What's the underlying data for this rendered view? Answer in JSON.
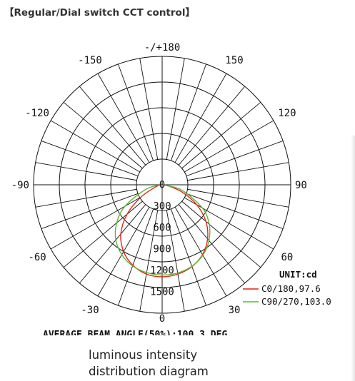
{
  "heading": "【Regular/Dial switch CCT control】",
  "caption": [
    "luminous intensity",
    "distribution diagram"
  ],
  "chart_data": {
    "type": "polar",
    "angle_labels": [
      {
        "angle": 180,
        "text": "-/+180"
      },
      {
        "angle": 150,
        "text": "150"
      },
      {
        "angle": -150,
        "text": "-150"
      },
      {
        "angle": 120,
        "text": "120"
      },
      {
        "angle": -120,
        "text": "-120"
      },
      {
        "angle": 90,
        "text": "90"
      },
      {
        "angle": -90,
        "text": "-90"
      },
      {
        "angle": 60,
        "text": "60"
      },
      {
        "angle": -60,
        "text": "-60"
      },
      {
        "angle": 30,
        "text": "30"
      },
      {
        "angle": -30,
        "text": "-30"
      },
      {
        "angle": 0,
        "text": "0"
      }
    ],
    "radial_ticks": [
      0,
      300,
      600,
      900,
      1200,
      1500
    ],
    "radial_max": 1800,
    "unit_label": "UNIT:cd",
    "beam_angle_text": "AVERAGE BEAM ANGLE(50%):100.3 DEG",
    "series": [
      {
        "name": "C0/180,97.6",
        "color": "#e2231a",
        "beam_angle": 97.6,
        "points": [
          {
            "angle": -90,
            "value": 0
          },
          {
            "angle": -75,
            "value": 75
          },
          {
            "angle": -60,
            "value": 340
          },
          {
            "angle": -50,
            "value": 640
          },
          {
            "angle": -40,
            "value": 900
          },
          {
            "angle": -30,
            "value": 1080
          },
          {
            "angle": -20,
            "value": 1200
          },
          {
            "angle": -10,
            "value": 1270
          },
          {
            "angle": 0,
            "value": 1290
          },
          {
            "angle": 10,
            "value": 1270
          },
          {
            "angle": 20,
            "value": 1220
          },
          {
            "angle": 30,
            "value": 1130
          },
          {
            "angle": 40,
            "value": 990
          },
          {
            "angle": 50,
            "value": 800
          },
          {
            "angle": 60,
            "value": 560
          },
          {
            "angle": 70,
            "value": 300
          },
          {
            "angle": 80,
            "value": 90
          },
          {
            "angle": 90,
            "value": 0
          }
        ]
      },
      {
        "name": "C90/270,103.0",
        "color": "#5cb832",
        "beam_angle": 103.0,
        "points": [
          {
            "angle": -90,
            "value": 0
          },
          {
            "angle": -75,
            "value": 230
          },
          {
            "angle": -60,
            "value": 600
          },
          {
            "angle": -50,
            "value": 830
          },
          {
            "angle": -40,
            "value": 1010
          },
          {
            "angle": -30,
            "value": 1130
          },
          {
            "angle": -20,
            "value": 1210
          },
          {
            "angle": -10,
            "value": 1250
          },
          {
            "angle": 0,
            "value": 1265
          },
          {
            "angle": 10,
            "value": 1255
          },
          {
            "angle": 20,
            "value": 1215
          },
          {
            "angle": 30,
            "value": 1140
          },
          {
            "angle": 40,
            "value": 1020
          },
          {
            "angle": 50,
            "value": 860
          },
          {
            "angle": 60,
            "value": 650
          },
          {
            "angle": 75,
            "value": 280
          },
          {
            "angle": 90,
            "value": 0
          }
        ]
      }
    ]
  }
}
